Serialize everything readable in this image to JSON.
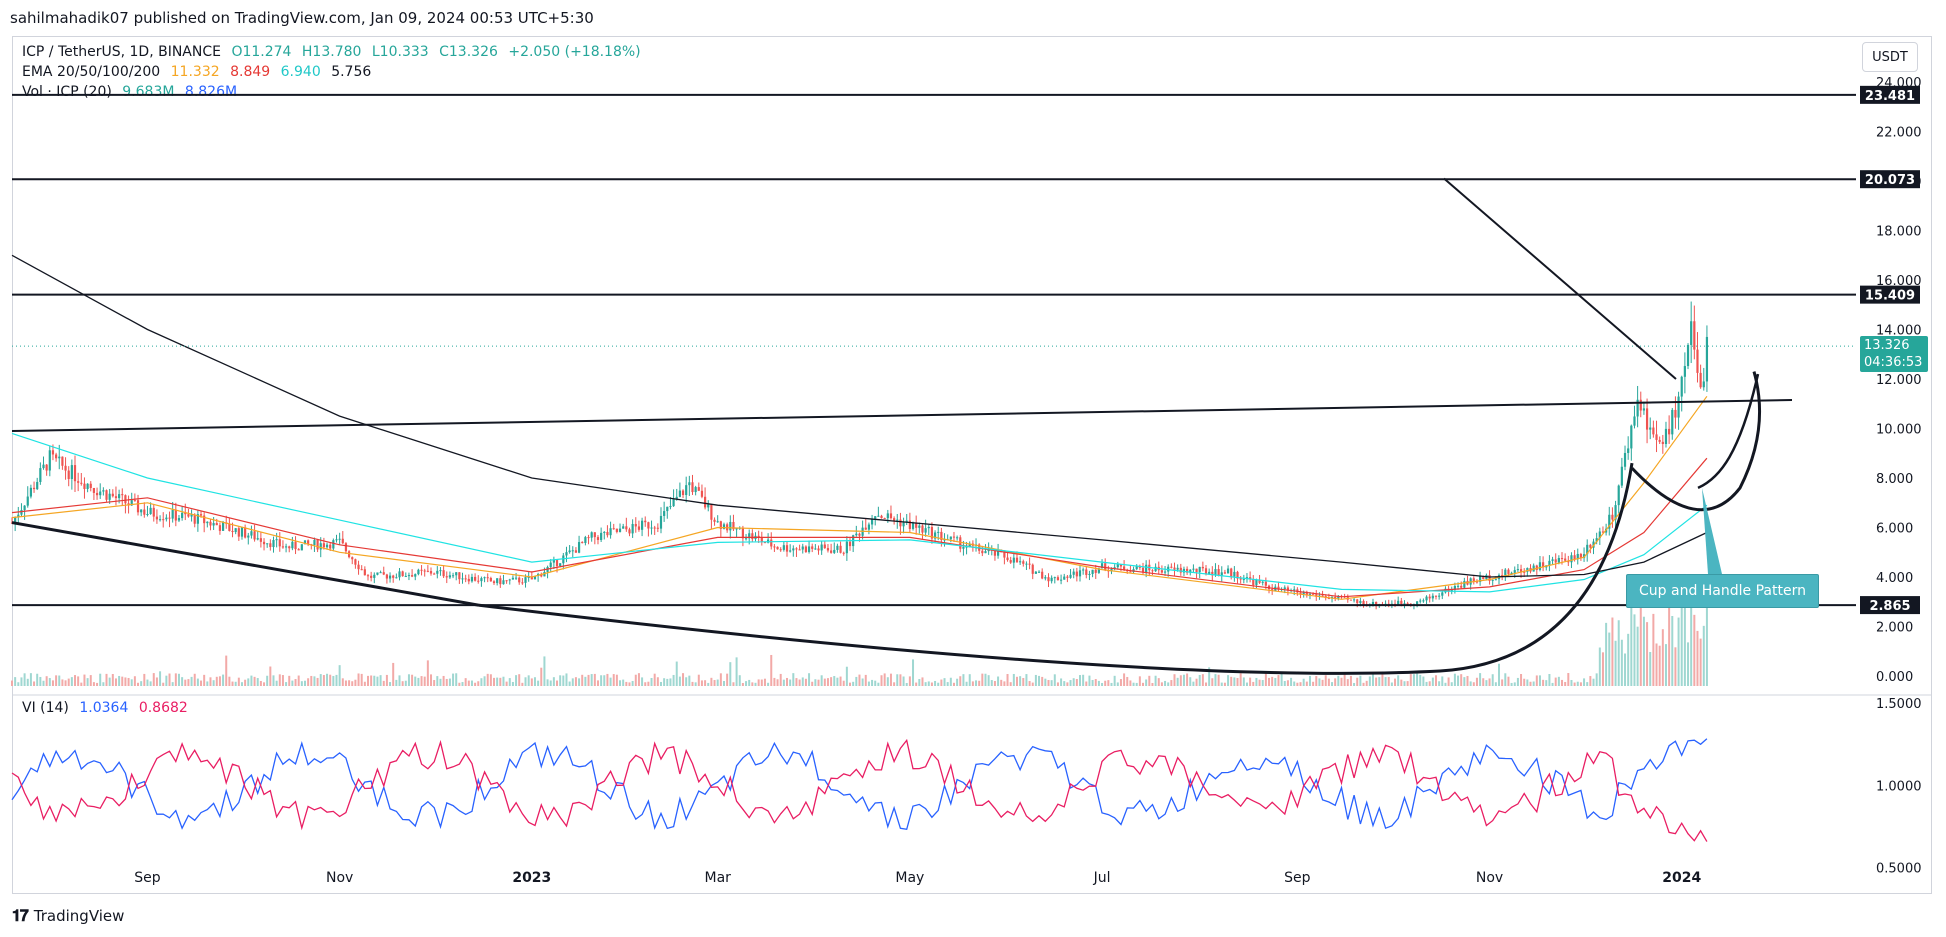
{
  "header": {
    "published": "sahilmahadik07 published on TradingView.com, Jan 09, 2024 00:53 UTC+5:30"
  },
  "legend": {
    "symbol": "ICP / TetherUS, 1D, BINANCE",
    "open": "O11.274",
    "high": "H13.780",
    "low": "L10.333",
    "close": "C13.326",
    "change": "+2.050 (+18.18%)",
    "ema_label": "EMA 20/50/100/200",
    "ema20": "11.332",
    "ema50": "8.849",
    "ema100": "6.940",
    "ema200": "5.756",
    "vol_label": "Vol · ICP (20)",
    "vol1": "9.683M",
    "vol2": "8.826M",
    "vi_label": "VI (14)",
    "vi_plus": "1.0364",
    "vi_minus": "0.8682"
  },
  "currency_button": "USDT",
  "price_label": {
    "price": "13.326",
    "countdown": "04:36:53"
  },
  "annotation": "Cup and Handle Pattern",
  "footer_brand": "TradingView",
  "colors": {
    "up": "#26a69a",
    "down": "#ef5350",
    "ema20": "#f5a623",
    "ema50": "#e53935",
    "ema100": "#20e3e3",
    "ema200": "#131722",
    "vi_plus": "#2962ff",
    "vi_minus": "#e91e63",
    "annotation_bg": "#4bb5c1"
  },
  "chart_data": {
    "type": "candlestick",
    "price_axis": {
      "min": 0,
      "max": 24,
      "ticks": [
        "0.000",
        "2.000",
        "4.000",
        "6.000",
        "8.000",
        "10.000",
        "12.000",
        "14.000",
        "16.000",
        "18.000",
        "20.000",
        "22.000",
        "24.000"
      ]
    },
    "time_axis": {
      "ticks": [
        "Sep",
        "Nov",
        "2023",
        "Mar",
        "May",
        "Jul",
        "Sep",
        "Nov",
        "2024"
      ],
      "start": "2022-07-20",
      "end": "2024-02-25"
    },
    "levels": [
      {
        "label": "23.481",
        "value": 23.481
      },
      {
        "label": "20.073",
        "value": 20.073
      },
      {
        "label": "15.409",
        "value": 15.409
      },
      {
        "label": "2.865",
        "value": 2.865
      }
    ],
    "price_path": [
      [
        "2022-07-20",
        6.2
      ],
      [
        "2022-08-01",
        8.8
      ],
      [
        "2022-08-15",
        7.6
      ],
      [
        "2022-09-01",
        6.6
      ],
      [
        "2022-09-15",
        6.4
      ],
      [
        "2022-10-01",
        5.8
      ],
      [
        "2022-10-15",
        5.2
      ],
      [
        "2022-11-01",
        5.4
      ],
      [
        "2022-11-10",
        4.0
      ],
      [
        "2022-12-01",
        4.2
      ],
      [
        "2022-12-20",
        3.8
      ],
      [
        "2023-01-01",
        3.9
      ],
      [
        "2023-01-20",
        5.6
      ],
      [
        "2023-02-10",
        6.2
      ],
      [
        "2023-02-20",
        7.8
      ],
      [
        "2023-03-01",
        6.2
      ],
      [
        "2023-03-20",
        5.2
      ],
      [
        "2023-04-10",
        5.1
      ],
      [
        "2023-04-20",
        6.6
      ],
      [
        "2023-05-01",
        6.1
      ],
      [
        "2023-05-20",
        5.2
      ],
      [
        "2023-06-01",
        4.8
      ],
      [
        "2023-06-15",
        3.9
      ],
      [
        "2023-07-01",
        4.4
      ],
      [
        "2023-07-20",
        4.3
      ],
      [
        "2023-08-10",
        4.2
      ],
      [
        "2023-08-25",
        3.5
      ],
      [
        "2023-09-10",
        3.2
      ],
      [
        "2023-09-25",
        2.9
      ],
      [
        "2023-10-10",
        3.0
      ],
      [
        "2023-10-25",
        3.8
      ],
      [
        "2023-11-15",
        4.4
      ],
      [
        "2023-11-30",
        4.9
      ],
      [
        "2023-12-10",
        6.5
      ],
      [
        "2023-12-18",
        11.2
      ],
      [
        "2023-12-25",
        9.2
      ],
      [
        "2023-12-31",
        11.0
      ],
      [
        "2024-01-04",
        13.8
      ],
      [
        "2024-01-07",
        11.4
      ],
      [
        "2024-01-09",
        13.326
      ]
    ],
    "ema": [
      {
        "name": "EMA 20",
        "points": [
          [
            "2022-07-20",
            6.4
          ],
          [
            "2022-09-01",
            7.0
          ],
          [
            "2022-11-01",
            5.0
          ],
          [
            "2023-01-01",
            4.0
          ],
          [
            "2023-03-01",
            6.0
          ],
          [
            "2023-05-01",
            5.8
          ],
          [
            "2023-07-01",
            4.3
          ],
          [
            "2023-09-15",
            3.1
          ],
          [
            "2023-11-01",
            3.9
          ],
          [
            "2023-12-01",
            4.8
          ],
          [
            "2023-12-20",
            7.8
          ],
          [
            "2024-01-09",
            11.3
          ]
        ]
      },
      {
        "name": "EMA 50",
        "points": [
          [
            "2022-07-20",
            6.6
          ],
          [
            "2022-09-01",
            7.2
          ],
          [
            "2022-11-01",
            5.3
          ],
          [
            "2023-01-01",
            4.2
          ],
          [
            "2023-03-01",
            5.6
          ],
          [
            "2023-05-01",
            5.6
          ],
          [
            "2023-07-01",
            4.4
          ],
          [
            "2023-09-15",
            3.2
          ],
          [
            "2023-11-01",
            3.6
          ],
          [
            "2023-12-01",
            4.3
          ],
          [
            "2023-12-20",
            5.8
          ],
          [
            "2024-01-09",
            8.8
          ]
        ]
      },
      {
        "name": "EMA 100",
        "points": [
          [
            "2022-07-20",
            9.8
          ],
          [
            "2022-09-01",
            8.0
          ],
          [
            "2022-11-01",
            6.3
          ],
          [
            "2023-01-01",
            4.6
          ],
          [
            "2023-03-01",
            5.4
          ],
          [
            "2023-05-01",
            5.5
          ],
          [
            "2023-07-01",
            4.6
          ],
          [
            "2023-09-15",
            3.5
          ],
          [
            "2023-11-01",
            3.4
          ],
          [
            "2023-12-01",
            3.9
          ],
          [
            "2023-12-20",
            4.9
          ],
          [
            "2024-01-09",
            6.9
          ]
        ]
      },
      {
        "name": "EMA 200",
        "points": [
          [
            "2022-07-20",
            17.0
          ],
          [
            "2022-09-01",
            14.0
          ],
          [
            "2022-11-01",
            10.5
          ],
          [
            "2023-01-01",
            8.0
          ],
          [
            "2023-03-01",
            6.9
          ],
          [
            "2023-05-01",
            6.2
          ],
          [
            "2023-07-01",
            5.5
          ],
          [
            "2023-09-15",
            4.6
          ],
          [
            "2023-11-01",
            4.0
          ],
          [
            "2023-12-01",
            4.1
          ],
          [
            "2023-12-20",
            4.6
          ],
          [
            "2024-01-09",
            5.8
          ]
        ]
      }
    ],
    "vi_axis": {
      "ticks": [
        "0.5000",
        "1.0000",
        "1.5000"
      ],
      "min": 0.35,
      "max": 1.55
    }
  }
}
